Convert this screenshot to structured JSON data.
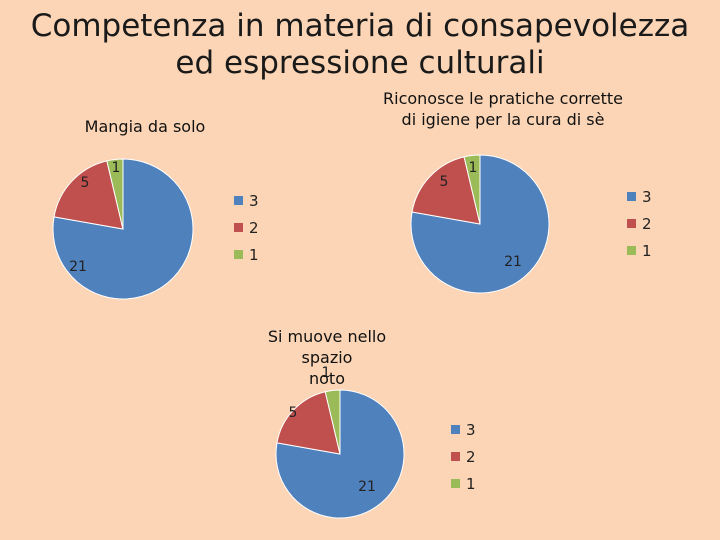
{
  "slide": {
    "title_line1": "Competenza in materia di consapevolezza",
    "title_line2": "ed espressione culturali"
  },
  "colors": {
    "3": "#4f81bd",
    "2": "#c0504d",
    "1": "#9bbb59"
  },
  "chart_data": [
    {
      "type": "pie",
      "title": "Mangia da solo",
      "categories": [
        "3",
        "2",
        "1"
      ],
      "values": [
        21,
        5,
        1
      ],
      "legend": "right"
    },
    {
      "type": "pie",
      "title": "Riconosce le pratiche corrette di igiene per la cura di sè",
      "title_line1": "Riconosce le pratiche corrette",
      "title_line2": "di igiene per la cura di sè",
      "categories": [
        "3",
        "2",
        "1"
      ],
      "values": [
        21,
        5,
        1
      ],
      "legend": "right"
    },
    {
      "type": "pie",
      "title": "Si muove nello spazio noto",
      "title_line1": "Si muove nello spazio",
      "title_line2": "noto",
      "categories": [
        "3",
        "2",
        "1"
      ],
      "values": [
        21,
        5,
        1
      ],
      "legend": "right"
    }
  ]
}
